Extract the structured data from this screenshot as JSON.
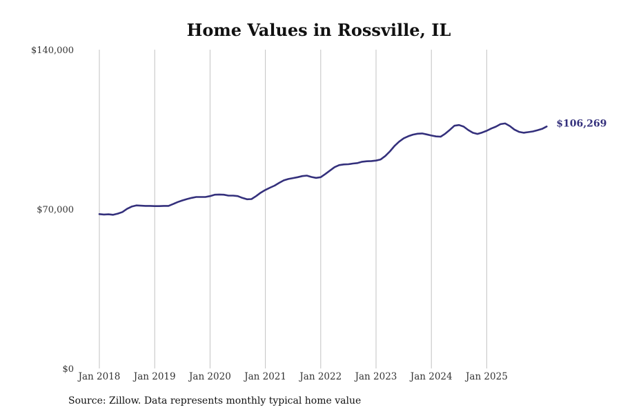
{
  "chart_data": {
    "type": "line",
    "title": "Home Values in Rossville, IL",
    "xlabel": "",
    "ylabel": "",
    "ylim": [
      0,
      140000
    ],
    "y_ticks": [
      {
        "value": 0,
        "label": "$0"
      },
      {
        "value": 70000,
        "label": "$70,000"
      },
      {
        "value": 140000,
        "label": "$140,000"
      }
    ],
    "x_ticks": [
      {
        "value": 2018,
        "label": "Jan 2018"
      },
      {
        "value": 2019,
        "label": "Jan 2019"
      },
      {
        "value": 2020,
        "label": "Jan 2020"
      },
      {
        "value": 2021,
        "label": "Jan 2021"
      },
      {
        "value": 2022,
        "label": "Jan 2022"
      },
      {
        "value": 2023,
        "label": "Jan 2023"
      },
      {
        "value": 2024,
        "label": "Jan 2024"
      },
      {
        "value": 2025,
        "label": "Jan 2025"
      }
    ],
    "xlim": [
      2018,
      2026
    ],
    "grid": "vertical",
    "line_color": "#34307c",
    "series": [
      {
        "name": "Typical home value",
        "start": 2018,
        "step": 0.0833333,
        "values": [
          67800,
          67600,
          67700,
          67500,
          68000,
          68700,
          70100,
          71100,
          71600,
          71500,
          71400,
          71400,
          71300,
          71300,
          71400,
          71400,
          72200,
          73100,
          73800,
          74400,
          74900,
          75300,
          75300,
          75300,
          75700,
          76300,
          76400,
          76300,
          75900,
          75900,
          75700,
          74900,
          74300,
          74400,
          75700,
          77200,
          78400,
          79400,
          80300,
          81500,
          82600,
          83200,
          83600,
          84000,
          84500,
          84700,
          84100,
          83700,
          84000,
          85400,
          86900,
          88400,
          89300,
          89600,
          89700,
          90000,
          90200,
          90800,
          91000,
          91100,
          91300,
          91800,
          93300,
          95300,
          97700,
          99600,
          101100,
          102000,
          102700,
          103100,
          103200,
          102800,
          102300,
          101900,
          101800,
          103100,
          104800,
          106600,
          106900,
          106200,
          104700,
          103500,
          103000,
          103600,
          104400,
          105400,
          106200,
          107300,
          107600,
          106500,
          104900,
          103900,
          103500,
          103800,
          104100,
          104600,
          105200,
          106269
        ]
      }
    ],
    "end_label": "$106,269"
  },
  "footer": {
    "source": "Source: Zillow. Data represents monthly typical home value"
  }
}
